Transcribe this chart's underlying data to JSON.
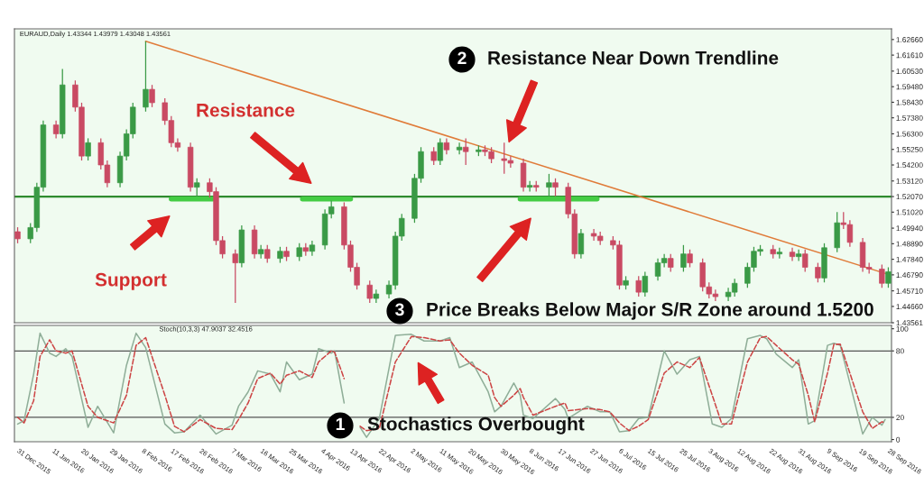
{
  "chart_data": [
    {
      "type": "candlestick",
      "title": "EURAUD,Daily 1.43344 1.43979 1.43048 1.43561",
      "x": [
        "2015-12-31",
        "2016-01-04",
        "2016-01-06",
        "2016-01-08",
        "2016-01-12",
        "2016-01-14",
        "2016-01-18",
        "2016-01-20",
        "2016-01-22",
        "2016-01-26",
        "2016-01-28",
        "2016-02-01",
        "2016-02-03",
        "2016-02-05",
        "2016-02-09",
        "2016-02-11",
        "2016-02-15",
        "2016-02-17",
        "2016-02-19",
        "2016-02-23",
        "2016-02-25",
        "2016-02-29",
        "2016-03-02",
        "2016-03-04",
        "2016-03-08",
        "2016-03-10",
        "2016-03-14",
        "2016-03-16",
        "2016-03-18",
        "2016-03-22",
        "2016-03-24",
        "2016-03-28",
        "2016-03-30",
        "2016-04-01",
        "2016-04-05",
        "2016-04-07",
        "2016-04-11",
        "2016-04-13",
        "2016-04-15",
        "2016-04-19",
        "2016-04-21",
        "2016-04-25",
        "2016-04-27",
        "2016-04-29",
        "2016-05-03",
        "2016-05-05",
        "2016-05-09",
        "2016-05-11",
        "2016-05-13",
        "2016-05-17",
        "2016-05-19",
        "2016-05-23",
        "2016-05-25",
        "2016-05-27",
        "2016-05-31",
        "2016-06-02",
        "2016-06-06",
        "2016-06-08",
        "2016-06-10",
        "2016-06-14",
        "2016-06-16",
        "2016-06-20",
        "2016-06-22",
        "2016-06-24",
        "2016-06-28",
        "2016-06-30",
        "2016-07-04",
        "2016-07-06",
        "2016-07-08",
        "2016-07-12",
        "2016-07-14",
        "2016-07-18",
        "2016-07-20",
        "2016-07-22",
        "2016-07-26",
        "2016-07-28",
        "2016-08-01",
        "2016-08-03",
        "2016-08-05",
        "2016-08-09",
        "2016-08-11",
        "2016-08-15",
        "2016-08-17",
        "2016-08-19",
        "2016-08-23",
        "2016-08-25",
        "2016-08-29",
        "2016-08-31",
        "2016-09-02",
        "2016-09-06",
        "2016-09-08",
        "2016-09-12",
        "2016-09-14",
        "2016-09-16",
        "2016-09-20",
        "2016-09-22",
        "2016-09-26",
        "2016-09-28"
      ],
      "ohlc": [
        [
          1.497,
          1.5,
          1.4892,
          1.4922
        ],
        [
          1.4922,
          1.5028,
          1.4892,
          1.4998
        ],
        [
          1.4998,
          1.53,
          1.4968,
          1.527
        ],
        [
          1.527,
          1.572,
          1.524,
          1.569
        ],
        [
          1.569,
          1.572,
          1.56,
          1.563
        ],
        [
          1.563,
          1.6068,
          1.56,
          1.596
        ],
        [
          1.596,
          1.599,
          1.578,
          1.581
        ],
        [
          1.581,
          1.584,
          1.545,
          1.548
        ],
        [
          1.548,
          1.56,
          1.545,
          1.557
        ],
        [
          1.557,
          1.56,
          1.539,
          1.542
        ],
        [
          1.542,
          1.545,
          1.527,
          1.53
        ],
        [
          1.53,
          1.551,
          1.527,
          1.548
        ],
        [
          1.548,
          1.566,
          1.545,
          1.563
        ],
        [
          1.563,
          1.584,
          1.56,
          1.581
        ],
        [
          1.581,
          1.6254,
          1.578,
          1.593
        ],
        [
          1.593,
          1.596,
          1.581,
          1.584
        ],
        [
          1.584,
          1.587,
          1.569,
          1.572
        ],
        [
          1.572,
          1.575,
          1.554,
          1.557
        ],
        [
          1.557,
          1.56,
          1.551,
          1.554
        ],
        [
          1.554,
          1.557,
          1.524,
          1.527
        ],
        [
          1.527,
          1.533,
          1.521,
          1.53
        ],
        [
          1.53,
          1.533,
          1.52,
          1.524
        ],
        [
          1.524,
          1.527,
          1.488,
          1.491
        ],
        [
          1.491,
          1.494,
          1.479,
          1.482
        ],
        [
          1.482,
          1.485,
          1.449,
          1.476
        ],
        [
          1.476,
          1.5012,
          1.473,
          1.4982
        ],
        [
          1.4982,
          1.5012,
          1.479,
          1.482
        ],
        [
          1.482,
          1.488,
          1.479,
          1.485
        ],
        [
          1.485,
          1.488,
          1.476,
          1.479
        ],
        [
          1.479,
          1.4868,
          1.476,
          1.4838
        ],
        [
          1.4838,
          1.4868,
          1.4772,
          1.4802
        ],
        [
          1.4802,
          1.4892,
          1.4772,
          1.4862
        ],
        [
          1.4862,
          1.4892,
          1.4808,
          1.4838
        ],
        [
          1.4838,
          1.491,
          1.4808,
          1.488
        ],
        [
          1.488,
          1.512,
          1.485,
          1.509
        ],
        [
          1.509,
          1.518,
          1.506,
          1.5138
        ],
        [
          1.5138,
          1.5168,
          1.485,
          1.488
        ],
        [
          1.488,
          1.491,
          1.47,
          1.473
        ],
        [
          1.473,
          1.476,
          1.458,
          1.461
        ],
        [
          1.461,
          1.464,
          1.449,
          1.452
        ],
        [
          1.452,
          1.458,
          1.449,
          1.455
        ],
        [
          1.455,
          1.464,
          1.452,
          1.461
        ],
        [
          1.461,
          1.497,
          1.458,
          1.494
        ],
        [
          1.494,
          1.509,
          1.491,
          1.506
        ],
        [
          1.506,
          1.536,
          1.503,
          1.533
        ],
        [
          1.533,
          1.554,
          1.53,
          1.551
        ],
        [
          1.551,
          1.554,
          1.542,
          1.545
        ],
        [
          1.545,
          1.56,
          1.542,
          1.557
        ],
        [
          1.557,
          1.56,
          1.5492,
          1.5522
        ],
        [
          1.5522,
          1.557,
          1.5492,
          1.554
        ],
        [
          1.554,
          1.56,
          1.542,
          1.551
        ],
        [
          1.551,
          1.5552,
          1.548,
          1.5522
        ],
        [
          1.5522,
          1.5552,
          1.548,
          1.551
        ],
        [
          1.551,
          1.554,
          1.5432,
          1.5462
        ],
        [
          1.5462,
          1.557,
          1.536,
          1.545
        ],
        [
          1.545,
          1.548,
          1.5402,
          1.5432
        ],
        [
          1.5432,
          1.5462,
          1.524,
          1.527
        ],
        [
          1.527,
          1.5312,
          1.524,
          1.5282
        ],
        [
          1.5282,
          1.5312,
          1.524,
          1.527
        ],
        [
          1.527,
          1.536,
          1.521,
          1.53
        ],
        [
          1.53,
          1.533,
          1.521,
          1.527
        ],
        [
          1.527,
          1.53,
          1.506,
          1.509
        ],
        [
          1.509,
          1.512,
          1.479,
          1.482
        ],
        [
          1.482,
          1.4988,
          1.479,
          1.4958
        ],
        [
          1.4958,
          1.4988,
          1.491,
          1.494
        ],
        [
          1.494,
          1.497,
          1.488,
          1.491
        ],
        [
          1.491,
          1.494,
          1.485,
          1.488
        ],
        [
          1.488,
          1.491,
          1.458,
          1.461
        ],
        [
          1.461,
          1.467,
          1.458,
          1.464
        ],
        [
          1.464,
          1.467,
          1.4532,
          1.4562
        ],
        [
          1.4562,
          1.47,
          1.4532,
          1.467
        ],
        [
          1.467,
          1.479,
          1.464,
          1.476
        ],
        [
          1.476,
          1.482,
          1.473,
          1.479
        ],
        [
          1.479,
          1.482,
          1.47,
          1.473
        ],
        [
          1.473,
          1.488,
          1.47,
          1.482
        ],
        [
          1.482,
          1.485,
          1.473,
          1.476
        ],
        [
          1.476,
          1.479,
          1.4568,
          1.4598
        ],
        [
          1.4598,
          1.4628,
          1.452,
          1.455
        ],
        [
          1.455,
          1.458,
          1.4502,
          1.4532
        ],
        [
          1.4532,
          1.4592,
          1.4502,
          1.4562
        ],
        [
          1.4562,
          1.4652,
          1.4532,
          1.4622
        ],
        [
          1.4622,
          1.476,
          1.4592,
          1.473
        ],
        [
          1.473,
          1.4868,
          1.47,
          1.4838
        ],
        [
          1.4838,
          1.488,
          1.4808,
          1.485
        ],
        [
          1.485,
          1.488,
          1.479,
          1.482
        ],
        [
          1.482,
          1.4862,
          1.479,
          1.4832
        ],
        [
          1.4832,
          1.4862,
          1.4772,
          1.4802
        ],
        [
          1.4802,
          1.485,
          1.4772,
          1.482
        ],
        [
          1.482,
          1.485,
          1.47,
          1.473
        ],
        [
          1.473,
          1.476,
          1.4628,
          1.4658
        ],
        [
          1.4658,
          1.4892,
          1.4628,
          1.4862
        ],
        [
          1.4862,
          1.5102,
          1.4832,
          1.503
        ],
        [
          1.503,
          1.5102,
          1.4988,
          1.5018
        ],
        [
          1.5018,
          1.5048,
          1.4868,
          1.4898
        ],
        [
          1.4898,
          1.4928,
          1.47,
          1.473
        ],
        [
          1.473,
          1.476,
          1.4688,
          1.4718
        ],
        [
          1.4718,
          1.4748,
          1.4592,
          1.4622
        ],
        [
          1.4622,
          1.473,
          1.4592,
          1.47
        ]
      ],
      "colors": [
        "#c94a63",
        "#3a9a46",
        "#3a9a46",
        "#3a9a46",
        "#c94a63",
        "#3a9a46",
        "#c94a63",
        "#c94a63",
        "#3a9a46",
        "#c94a63",
        "#c94a63",
        "#3a9a46",
        "#3a9a46",
        "#3a9a46",
        "#3a9a46",
        "#c94a63",
        "#c94a63",
        "#c94a63",
        "#c94a63",
        "#c94a63",
        "#3a9a46",
        "#c94a63",
        "#c94a63",
        "#c94a63",
        "#c94a63",
        "#3a9a46",
        "#c94a63",
        "#3a9a46",
        "#c94a63",
        "#3a9a46",
        "#c94a63",
        "#3a9a46",
        "#c94a63",
        "#3a9a46",
        "#3a9a46",
        "#3a9a46",
        "#c94a63",
        "#c94a63",
        "#c94a63",
        "#c94a63",
        "#3a9a46",
        "#3a9a46",
        "#3a9a46",
        "#3a9a46",
        "#3a9a46",
        "#3a9a46",
        "#c94a63",
        "#3a9a46",
        "#c94a63",
        "#3a9a46",
        "#c94a63",
        "#3a9a46",
        "#c94a63",
        "#c94a63",
        "#c94a63",
        "#c94a63",
        "#c94a63",
        "#3a9a46",
        "#c94a63",
        "#3a9a46",
        "#c94a63",
        "#c94a63",
        "#c94a63",
        "#3a9a46",
        "#c94a63",
        "#c94a63",
        "#c94a63",
        "#c94a63",
        "#3a9a46",
        "#c94a63",
        "#3a9a46",
        "#3a9a46",
        "#3a9a46",
        "#c94a63",
        "#3a9a46",
        "#c94a63",
        "#c94a63",
        "#c94a63",
        "#c94a63",
        "#3a9a46",
        "#3a9a46",
        "#3a9a46",
        "#3a9a46",
        "#3a9a46",
        "#c94a63",
        "#3a9a46",
        "#c94a63",
        "#3a9a46",
        "#c94a63",
        "#c94a63",
        "#3a9a46",
        "#3a9a46",
        "#c94a63",
        "#c94a63",
        "#c94a63",
        "#c94a63",
        "#c94a63",
        "#3a9a46"
      ],
      "series": [
        {
          "type": "line",
          "color": "#e07b39",
          "x": [
            "2016-02-09",
            "2016-09-28"
          ],
          "values": [
            1.6254,
            1.4682
          ]
        },
        {
          "type": "line",
          "color": "#44cc44",
          "x": [
            "2016-02-17",
            "2016-03-01"
          ],
          "values": [
            1.519,
            1.519
          ]
        },
        {
          "type": "line",
          "color": "#44cc44",
          "x": [
            "2016-03-29",
            "2016-04-13"
          ],
          "values": [
            1.519,
            1.519
          ]
        },
        {
          "type": "line",
          "color": "#44cc44",
          "x": [
            "2016-06-05",
            "2016-06-29"
          ],
          "values": [
            1.519,
            1.519
          ]
        }
      ],
      "ref_lines": [
        {
          "axis": "y",
          "value": 1.5207,
          "color": "#2e8b2e"
        }
      ],
      "xlim": [
        "2015-12-30",
        "2016-09-29"
      ],
      "ylim": [
        1.43561,
        1.6338
      ],
      "yticks": [
        {
          "value": 1.43561,
          "label": "1.43561"
        },
        {
          "value": 1.4466,
          "label": "1.44660"
        },
        {
          "value": 1.4571,
          "label": "1.45710"
        },
        {
          "value": 1.4679,
          "label": "1.46790"
        },
        {
          "value": 1.4784,
          "label": "1.47840"
        },
        {
          "value": 1.4889,
          "label": "1.48890"
        },
        {
          "value": 1.4994,
          "label": "1.49940"
        },
        {
          "value": 1.5102,
          "label": "1.51020"
        },
        {
          "value": 1.5207,
          "label": "1.52070"
        },
        {
          "value": 1.5312,
          "label": "1.53120"
        },
        {
          "value": 1.542,
          "label": "1.54200"
        },
        {
          "value": 1.5525,
          "label": "1.55250"
        },
        {
          "value": 1.563,
          "label": "1.56300"
        },
        {
          "value": 1.5738,
          "label": "1.57380"
        },
        {
          "value": 1.5843,
          "label": "1.58430"
        },
        {
          "value": 1.5948,
          "label": "1.59480"
        },
        {
          "value": 1.6053,
          "label": "1.60530"
        },
        {
          "value": 1.6161,
          "label": "1.61610"
        },
        {
          "value": 1.6266,
          "label": "1.62660"
        }
      ],
      "tick_labels": "y",
      "annotations": [
        "Resistance",
        "Support",
        "2",
        "Resistance Near Down Trendline",
        "3",
        "Price Breaks Below Major S/R Zone around 1.5200"
      ]
    },
    {
      "type": "line",
      "title": "Stoch(10,3,3) 47.9037 32.4516",
      "series": [
        {
          "color": "#8fae98",
          "line_style": "solid",
          "x": [
            "2015-12-31",
            "2016-01-02",
            "2016-01-05",
            "2016-01-07",
            "2016-01-10",
            "2016-01-12",
            "2016-01-15",
            "2016-01-17",
            "2016-01-22",
            "2016-01-25",
            "2016-01-30",
            "2016-02-03",
            "2016-02-06",
            "2016-02-09",
            "2016-02-15",
            "2016-02-18",
            "2016-02-21",
            "2016-02-26",
            "2016-03-02",
            "2016-03-07",
            "2016-03-09",
            "2016-03-12",
            "2016-03-15",
            "2016-03-19",
            "2016-03-22",
            "2016-03-24",
            "2016-03-28",
            "2016-04-01",
            "2016-04-03",
            "2016-04-07",
            "2016-04-08",
            "2016-04-11",
            "2016-04-12",
            "2016-04-16",
            "2016-04-18",
            "2016-04-22",
            "2016-04-27",
            "2016-05-02",
            "2016-05-06",
            "2016-05-11",
            "2016-05-14",
            "2016-05-17",
            "2016-05-21",
            "2016-05-26",
            "2016-05-28",
            "2016-05-30",
            "2016-06-03",
            "2016-06-05",
            "2016-06-06",
            "2016-06-09",
            "2016-06-16",
            "2016-06-19",
            "2016-06-20",
            "2016-06-26",
            "2016-06-30",
            "2016-07-03",
            "2016-07-06",
            "2016-07-09",
            "2016-07-12",
            "2016-07-15",
            "2016-07-20",
            "2016-07-24",
            "2016-07-28",
            "2016-07-31",
            "2016-08-04",
            "2016-08-07",
            "2016-08-10",
            "2016-08-15",
            "2016-08-19",
            "2016-08-21",
            "2016-08-24",
            "2016-08-29",
            "2016-08-31",
            "2016-09-03",
            "2016-09-05",
            "2016-09-09",
            "2016-09-11",
            "2016-09-13",
            "2016-09-20",
            "2016-09-23",
            "2016-09-26",
            "2016-09-27"
          ],
          "values": [
            14,
            17,
            59,
            96,
            78,
            75,
            82,
            75,
            11,
            30,
            6,
            67,
            96,
            83,
            14,
            6,
            7,
            22,
            5,
            13,
            30,
            43,
            62,
            59,
            43,
            70,
            54,
            59,
            82,
            78,
            80,
            33,
            null,
            11,
            2,
            19,
            94,
            95,
            89,
            89,
            92,
            65,
            70,
            43,
            25,
            30,
            51,
            40,
            22,
            19,
            37,
            27,
            19,
            30,
            25,
            25,
            7,
            8,
            19,
            20,
            80,
            59,
            72,
            75,
            14,
            11,
            19,
            91,
            94,
            91,
            77,
            65,
            72,
            14,
            17,
            85,
            87,
            85,
            5,
            20,
            13,
            18
          ]
        },
        {
          "color": "#cc4444",
          "line_style": "dashed",
          "x": [
            "2015-12-31",
            "2016-01-02",
            "2016-01-05",
            "2016-01-07",
            "2016-01-10",
            "2016-01-12",
            "2016-01-15",
            "2016-01-17",
            "2016-01-22",
            "2016-01-25",
            "2016-01-30",
            "2016-02-03",
            "2016-02-06",
            "2016-02-09",
            "2016-02-15",
            "2016-02-18",
            "2016-02-21",
            "2016-02-26",
            "2016-03-02",
            "2016-03-07",
            "2016-03-09",
            "2016-03-12",
            "2016-03-15",
            "2016-03-19",
            "2016-03-22",
            "2016-03-24",
            "2016-03-28",
            "2016-04-01",
            "2016-04-03",
            "2016-04-07",
            "2016-04-08",
            "2016-04-11",
            "2016-04-12",
            "2016-04-16",
            "2016-04-18",
            "2016-04-22",
            "2016-04-27",
            "2016-05-02",
            "2016-05-06",
            "2016-05-11",
            "2016-05-14",
            "2016-05-17",
            "2016-05-21",
            "2016-05-26",
            "2016-05-28",
            "2016-05-30",
            "2016-06-03",
            "2016-06-05",
            "2016-06-06",
            "2016-06-09",
            "2016-06-16",
            "2016-06-19",
            "2016-06-20",
            "2016-06-26",
            "2016-06-30",
            "2016-07-03",
            "2016-07-06",
            "2016-07-09",
            "2016-07-12",
            "2016-07-15",
            "2016-07-20",
            "2016-07-24",
            "2016-07-28",
            "2016-07-31",
            "2016-08-04",
            "2016-08-07",
            "2016-08-10",
            "2016-08-15",
            "2016-08-19",
            "2016-08-21",
            "2016-08-24",
            "2016-08-29",
            "2016-08-31",
            "2016-09-03",
            "2016-09-05",
            "2016-09-09",
            "2016-09-11",
            "2016-09-13",
            "2016-09-20",
            "2016-09-23",
            "2016-09-26",
            "2016-09-27"
          ],
          "values": [
            20,
            15,
            35,
            75,
            90,
            80,
            78,
            80,
            30,
            20,
            15,
            40,
            85,
            92,
            40,
            12,
            7,
            18,
            10,
            9,
            18,
            33,
            55,
            60,
            50,
            58,
            62,
            56,
            70,
            80,
            79,
            55,
            null,
            12,
            8,
            10,
            70,
            93,
            92,
            89,
            90,
            78,
            67,
            58,
            38,
            30,
            40,
            46,
            38,
            22,
            30,
            33,
            26,
            28,
            27,
            25,
            15,
            8,
            12,
            18,
            60,
            70,
            65,
            74,
            40,
            14,
            14,
            70,
            92,
            93,
            85,
            72,
            68,
            40,
            16,
            60,
            86,
            86,
            25,
            10,
            16,
            15
          ]
        }
      ],
      "ref_lines": [
        {
          "axis": "y",
          "value": 80,
          "color": "#555555"
        },
        {
          "axis": "y",
          "value": 20,
          "color": "#555555"
        }
      ],
      "xlim": [
        "2015-12-30",
        "2016-09-29"
      ],
      "xticks": [
        {
          "value": "2015-12-31",
          "label": "31 Dec 2015"
        },
        {
          "value": "2016-01-11",
          "label": "11 Jan 2016"
        },
        {
          "value": "2016-01-20",
          "label": "20 Jan 2016"
        },
        {
          "value": "2016-01-29",
          "label": "29 Jan 2016"
        },
        {
          "value": "2016-02-08",
          "label": "8 Feb 2016"
        },
        {
          "value": "2016-02-17",
          "label": "17 Feb 2016"
        },
        {
          "value": "2016-02-26",
          "label": "26 Feb 2016"
        },
        {
          "value": "2016-03-07",
          "label": "7 Mar 2016"
        },
        {
          "value": "2016-03-16",
          "label": "16 Mar 2016"
        },
        {
          "value": "2016-03-25",
          "label": "25 Mar 2016"
        },
        {
          "value": "2016-04-04",
          "label": "4 Apr 2016"
        },
        {
          "value": "2016-04-13",
          "label": "13 Apr 2016"
        },
        {
          "value": "2016-04-22",
          "label": "22 Apr 2016"
        },
        {
          "value": "2016-05-02",
          "label": "2 May 2016"
        },
        {
          "value": "2016-05-11",
          "label": "11 May 2016"
        },
        {
          "value": "2016-05-20",
          "label": "20 May 2016"
        },
        {
          "value": "2016-05-30",
          "label": "30 May 2016"
        },
        {
          "value": "2016-06-08",
          "label": "8 Jun 2016"
        },
        {
          "value": "2016-06-17",
          "label": "17 Jun 2016"
        },
        {
          "value": "2016-06-27",
          "label": "27 Jun 2016"
        },
        {
          "value": "2016-07-06",
          "label": "6 Jul 2016"
        },
        {
          "value": "2016-07-15",
          "label": "15 Jul 2016"
        },
        {
          "value": "2016-07-25",
          "label": "25 Jul 2016"
        },
        {
          "value": "2016-08-03",
          "label": "3 Aug 2016"
        },
        {
          "value": "2016-08-12",
          "label": "12 Aug 2016"
        },
        {
          "value": "2016-08-22",
          "label": "22 Aug 2016"
        },
        {
          "value": "2016-08-31",
          "label": "31 Aug 2016"
        },
        {
          "value": "2016-09-09",
          "label": "9 Sep 2016"
        },
        {
          "value": "2016-09-19",
          "label": "19 Sep 2016"
        },
        {
          "value": "2016-09-28",
          "label": "28 Sep 2016"
        }
      ],
      "ylim": [
        -2,
        103
      ],
      "yticks": [
        0,
        20,
        80,
        100
      ],
      "annotations": [
        "1",
        "Stochastics Overbought"
      ]
    }
  ]
}
